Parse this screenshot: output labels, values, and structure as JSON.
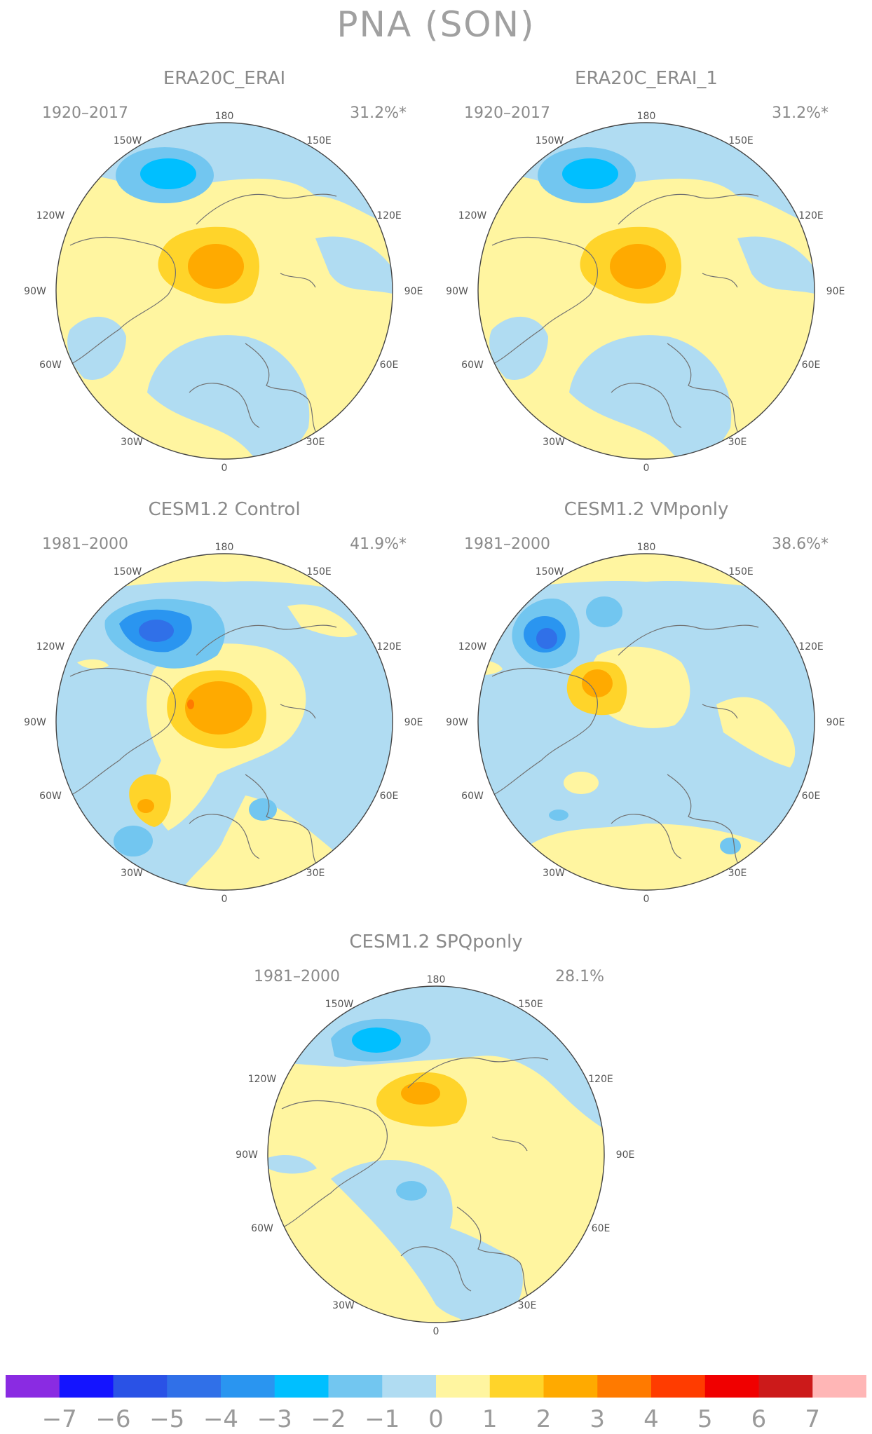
{
  "figure": {
    "title": "PNA (SON)"
  },
  "lon_labels": [
    "180",
    "150E",
    "120E",
    "90E",
    "60E",
    "30E",
    "0",
    "30W",
    "60W",
    "90W",
    "120W",
    "150W"
  ],
  "panels": [
    {
      "title": "ERA20C_ERAI",
      "years": "1920–2017",
      "percent": "31.2%*"
    },
    {
      "title": "ERA20C_ERAI_1",
      "years": "1920–2017",
      "percent": "31.2%*"
    },
    {
      "title": "CESM1.2 Control",
      "years": "1981–2000",
      "percent": "41.9%*"
    },
    {
      "title": "CESM1.2 VMponly",
      "years": "1981–2000",
      "percent": "38.6%*"
    },
    {
      "title": "CESM1.2 SPQponly",
      "years": "1981–2000",
      "percent": "28.1%"
    }
  ],
  "colorbar": {
    "labels": [
      "−7",
      "−6",
      "−5",
      "−4",
      "−3",
      "−2",
      "−1",
      "0",
      "1",
      "2",
      "3",
      "4",
      "5",
      "6",
      "7"
    ],
    "colors": [
      "#8a2be2",
      "#1414ff",
      "#2a52e6",
      "#3070e8",
      "#2a95f0",
      "#00bfff",
      "#72c6f0",
      "#b0dcf2",
      "#fff5a0",
      "#ffd42a",
      "#ffaa00",
      "#ff7a00",
      "#ff3c00",
      "#f00000",
      "#cc1a1a",
      "#ffb6b6"
    ]
  },
  "colors": {
    "light_blue": "#b0dcf2",
    "blue": "#72c6f0",
    "cyan": "#00bfff",
    "mid_blue": "#2a95f0",
    "dark_blue": "#3070e8",
    "light_yellow": "#fff5a0",
    "yellow": "#ffd42a",
    "orange": "#ffaa00",
    "dark_orange": "#ff7a00"
  }
}
